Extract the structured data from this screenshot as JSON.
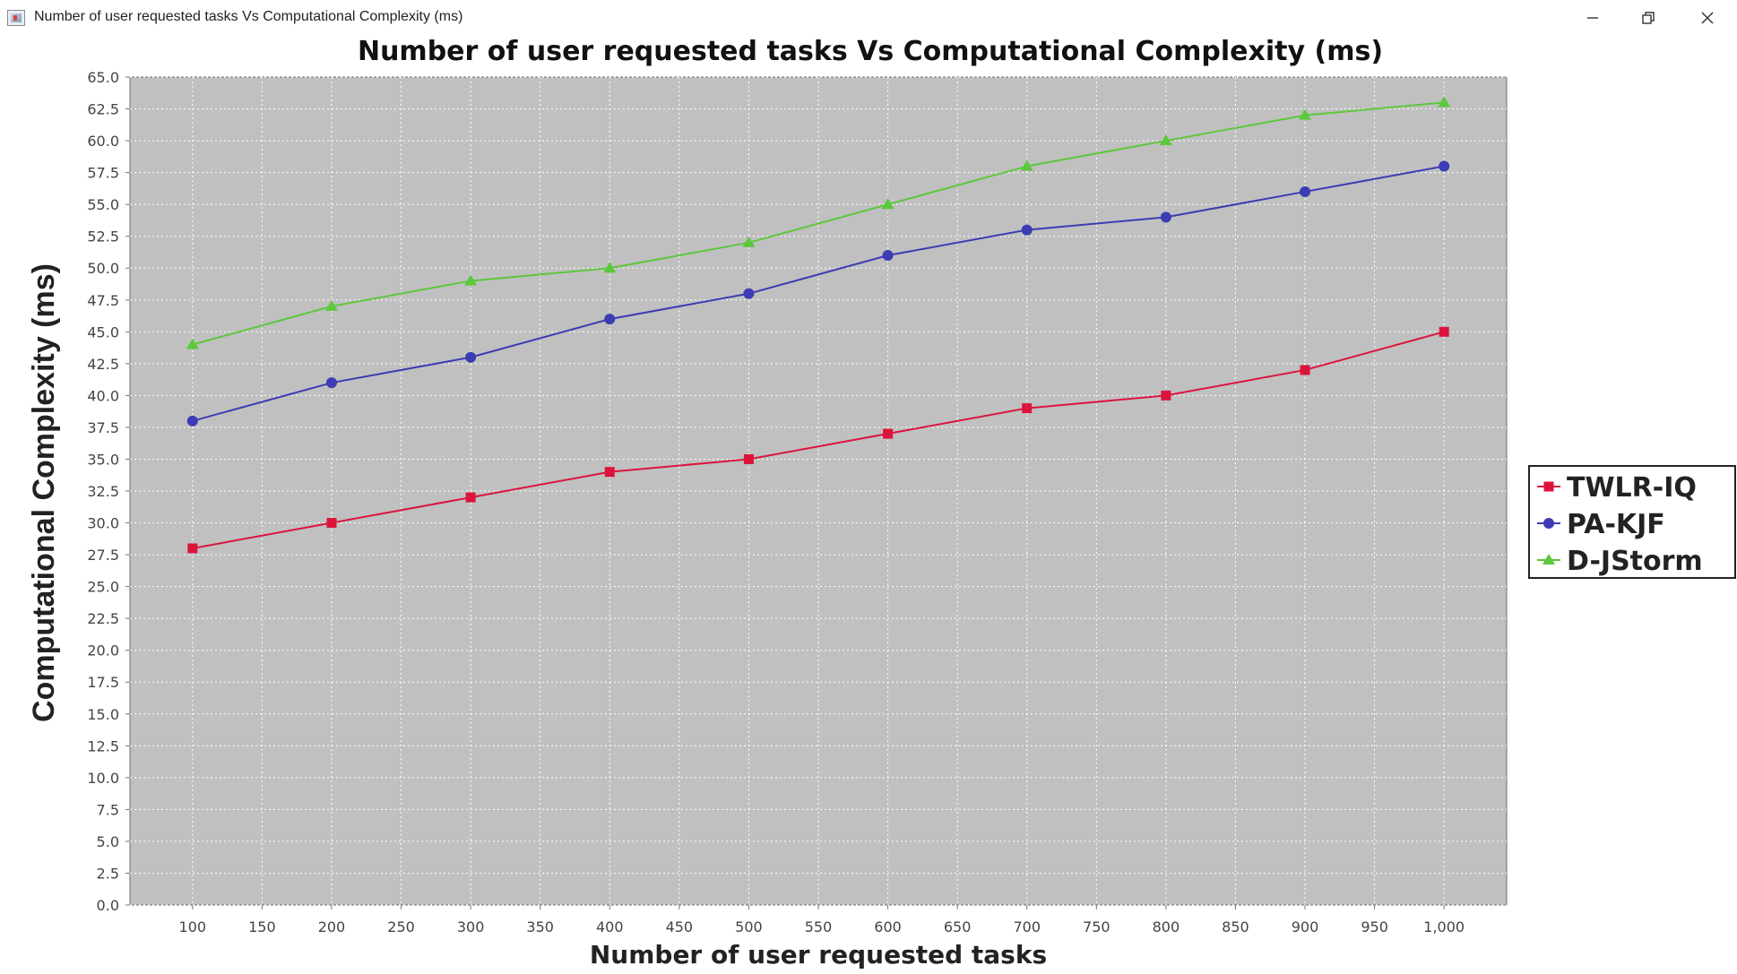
{
  "window": {
    "title": "Number of user requested tasks Vs Computational Complexity (ms)",
    "controls": {
      "minimize": "minimize-icon",
      "restore": "restore-icon",
      "close": "close-icon"
    }
  },
  "chart_data": {
    "type": "line",
    "title": "Number of user requested tasks Vs Computational Complexity (ms)",
    "xlabel": "Number of user requested tasks",
    "ylabel": "Computational Complexity (ms)",
    "x": [
      100,
      200,
      300,
      400,
      500,
      600,
      700,
      800,
      900,
      1000
    ],
    "xlim": [
      55,
      1045
    ],
    "ylim": [
      0,
      65
    ],
    "x_ticks": [
      100,
      150,
      200,
      250,
      300,
      350,
      400,
      450,
      500,
      550,
      600,
      650,
      700,
      750,
      800,
      850,
      900,
      950,
      1000
    ],
    "x_tick_labels": [
      "100",
      "150",
      "200",
      "250",
      "300",
      "350",
      "400",
      "450",
      "500",
      "550",
      "600",
      "650",
      "700",
      "750",
      "800",
      "850",
      "900",
      "950",
      "1,000"
    ],
    "y_ticks": [
      0,
      2.5,
      5,
      7.5,
      10,
      12.5,
      15,
      17.5,
      20,
      22.5,
      25,
      27.5,
      30,
      32.5,
      35,
      37.5,
      40,
      42.5,
      45,
      47.5,
      50,
      52.5,
      55,
      57.5,
      60,
      62.5,
      65
    ],
    "y_tick_labels": [
      "0.0",
      "2.5",
      "5.0",
      "7.5",
      "10.0",
      "12.5",
      "15.0",
      "17.5",
      "20.0",
      "22.5",
      "25.0",
      "27.5",
      "30.0",
      "32.5",
      "35.0",
      "37.5",
      "40.0",
      "42.5",
      "45.0",
      "47.5",
      "50.0",
      "52.5",
      "55.0",
      "57.5",
      "60.0",
      "62.5",
      "65.0"
    ],
    "grid": true,
    "legend_position": "right",
    "plot_background": "#c0c0c0",
    "series": [
      {
        "name": "TWLR-IQ",
        "color": "#dc143c",
        "marker": "square",
        "values": [
          28,
          30,
          32,
          34,
          35,
          37,
          39,
          40,
          42,
          45
        ]
      },
      {
        "name": "PA-KJF",
        "color": "#3c3cb4",
        "marker": "circle",
        "values": [
          38,
          41,
          43,
          46,
          48,
          51,
          53,
          54,
          56,
          58
        ]
      },
      {
        "name": "D-JStorm",
        "color": "#5cc83c",
        "marker": "triangle",
        "values": [
          44,
          47,
          49,
          50,
          52,
          55,
          58,
          60,
          62,
          63
        ]
      }
    ]
  }
}
